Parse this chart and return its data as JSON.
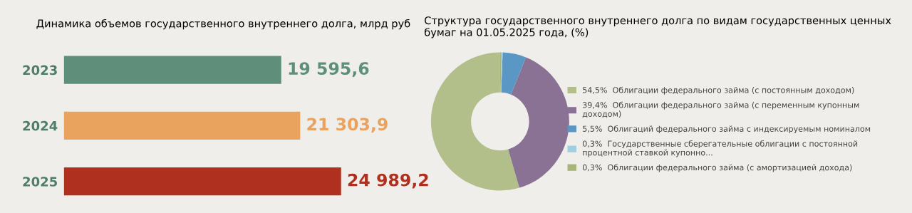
{
  "chart_data": [
    {
      "type": "bar",
      "orientation": "horizontal",
      "title": "Динамика объемов государственного внутреннего долга, млрд руб",
      "categories": [
        "2023",
        "2024",
        "2025"
      ],
      "values": [
        19595.6,
        21303.9,
        24989.2
      ],
      "colors": [
        "#5f8f7a",
        "#e9a35e",
        "#b0301f"
      ],
      "value_labels": [
        "19 595,6",
        "21 303,9",
        "24 989,2"
      ]
    },
    {
      "type": "donut",
      "title": "Структура государственного внутреннего долга по видам государственных ценных\nбумаг на 01.05.2025 года, (%)",
      "categories": [
        "Облигации федерального займа (с постоянным доходом)",
        "Облигации федерального займа (с переменным купонным\nдоходом)",
        "Облигаций федерального займа с индексируемым номиналом",
        "Государственные сберегательные облигации с постоянной\nпроцентной ставкой купонно...",
        "Облигации федерального займа (с амортизацией дохода)"
      ],
      "values": [
        54.5,
        39.4,
        5.5,
        0.3,
        0.3
      ],
      "value_labels": [
        "54,5%",
        "39,4%",
        "5,5%",
        "0,3%",
        "0,3%"
      ],
      "colors": [
        "#b3bf8a",
        "#8a7294",
        "#5b97c4",
        "#9dcfe0",
        "#a7b47a"
      ],
      "legend": "right"
    }
  ]
}
